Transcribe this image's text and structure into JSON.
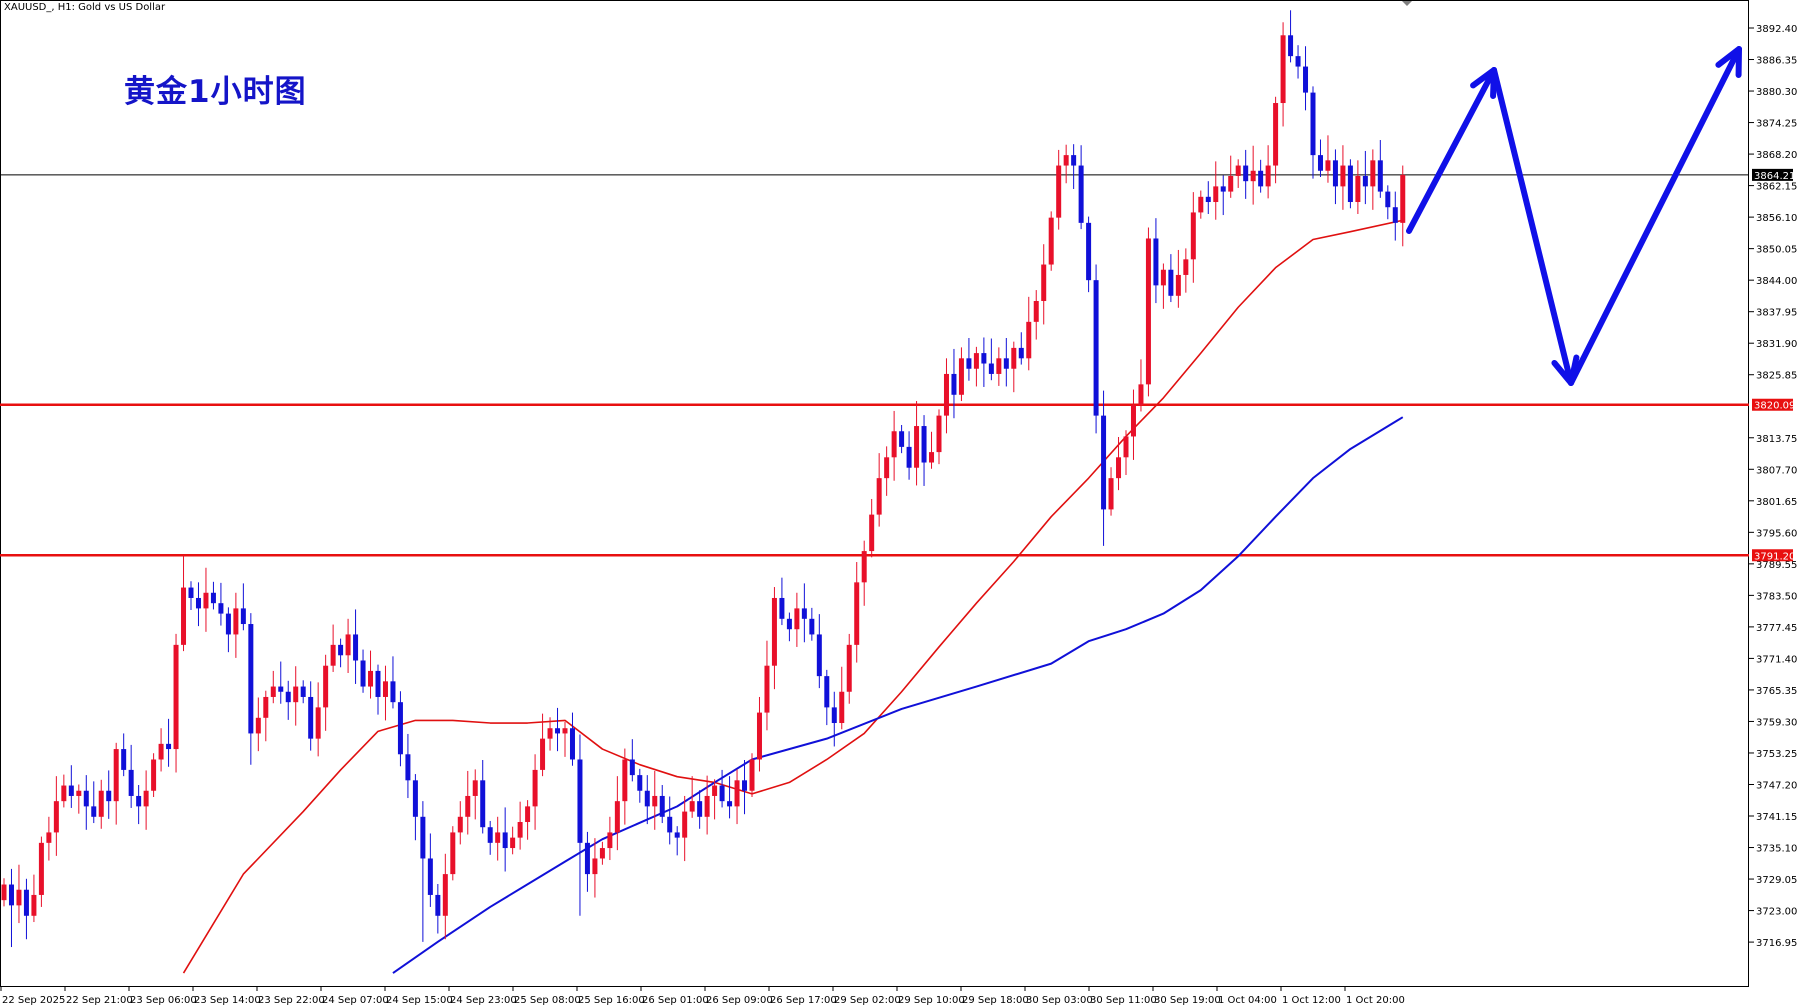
{
  "header": {
    "symbol_info": "XAUUSD_, H1:  Gold vs US Dollar",
    "annotation_title": "黄金1小时图"
  },
  "chart_data": {
    "type": "candlestick",
    "symbol": "XAUUSD_",
    "timeframe": "H1",
    "ylim": [
      3708.5,
      3898.0
    ],
    "grid": false,
    "colors": {
      "up": "#e8102a",
      "down": "#1010d8",
      "ma_fast": "#e01010",
      "ma_slow": "#1010d8",
      "level": "#e81010",
      "current_price_line": "#000000",
      "forecast_arrow": "#1010e8"
    },
    "first_open": 3725,
    "closes": [
      3728,
      3724,
      3727,
      3722,
      3726,
      3736,
      3738,
      3744,
      3747,
      3745,
      3746,
      3743,
      3741,
      3746,
      3744,
      3754,
      3750,
      3745,
      3743,
      3746,
      3752,
      3755,
      3754,
      3774,
      3785,
      3783,
      3781,
      3784,
      3782,
      3780,
      3776,
      3781,
      3778,
      3757,
      3760,
      3764,
      3766,
      3765,
      3763,
      3766,
      3764,
      3756,
      3762,
      3770,
      3774,
      3772,
      3776,
      3771,
      3766,
      3769,
      3764,
      3767,
      3763,
      3753,
      3748,
      3741,
      3733,
      3726,
      3722,
      3730,
      3738,
      3741,
      3745,
      3748,
      3739,
      3736,
      3738,
      3735,
      3737,
      3740,
      3743,
      3750,
      3756,
      3758,
      3757,
      3758,
      3752,
      3736,
      3730,
      3733,
      3735,
      3738,
      3744,
      3752,
      3749,
      3746,
      3743,
      3745,
      3741,
      3738,
      3737,
      3742,
      3744,
      3741,
      3745,
      3747,
      3744,
      3743,
      3748,
      3746,
      3752,
      3761,
      3770,
      3783,
      3779,
      3777,
      3781,
      3779,
      3776,
      3768,
      3762,
      3759,
      3765,
      3774,
      3786,
      3792,
      3799,
      3806,
      3810,
      3815,
      3812,
      3808,
      3816,
      3809,
      3811,
      3818,
      3826,
      3822,
      3829,
      3827,
      3830,
      3828,
      3826,
      3829,
      3827,
      3831,
      3829,
      3836,
      3840,
      3847,
      3856,
      3866,
      3868,
      3866,
      3855,
      3844,
      3818,
      3800,
      3806,
      3810,
      3814,
      3820,
      3824,
      3852,
      3843,
      3846,
      3841,
      3845,
      3848,
      3857,
      3860,
      3859,
      3862,
      3861,
      3864,
      3866,
      3863,
      3865,
      3862,
      3866,
      3878,
      3891,
      3887,
      3885,
      3880,
      3868,
      3865,
      3867,
      3862,
      3866,
      3859,
      3864,
      3862,
      3867,
      3861,
      3858,
      3855,
      3864.21
    ],
    "extremes": {
      "1": {
        "l": 3716
      },
      "24": {
        "h": 3791.2
      },
      "33": {
        "l": 3751
      },
      "56": {
        "l": 3717
      },
      "77": {
        "l": 3722
      },
      "115": {
        "h": 3794
      },
      "142": {
        "h": 3870
      },
      "147": {
        "l": 3793
      },
      "171": {
        "h": 3893.5
      },
      "187": {
        "h": 3866
      }
    },
    "ma_fast": [
      [
        24,
        3711
      ],
      [
        32,
        3730
      ],
      [
        40,
        3742
      ],
      [
        45,
        3750
      ],
      [
        50,
        3757.4
      ],
      [
        55,
        3759.5
      ],
      [
        60,
        3759.5
      ],
      [
        65,
        3759
      ],
      [
        70,
        3759
      ],
      [
        75,
        3759.5
      ],
      [
        80,
        3754
      ],
      [
        85,
        3751
      ],
      [
        90,
        3748.7
      ],
      [
        95,
        3747.6
      ],
      [
        100,
        3745.4
      ],
      [
        105,
        3747.6
      ],
      [
        110,
        3752
      ],
      [
        115,
        3757
      ],
      [
        120,
        3765
      ],
      [
        125,
        3773.6
      ],
      [
        130,
        3782
      ],
      [
        135,
        3790
      ],
      [
        140,
        3798.6
      ],
      [
        145,
        3806
      ],
      [
        150,
        3814
      ],
      [
        155,
        3821.4
      ],
      [
        160,
        3830
      ],
      [
        165,
        3838.8
      ],
      [
        170,
        3846.4
      ],
      [
        175,
        3851.8
      ],
      [
        180,
        3853.3
      ],
      [
        187,
        3855.5
      ]
    ],
    "ma_slow": [
      [
        52,
        3711
      ],
      [
        58,
        3717
      ],
      [
        65,
        3723.7
      ],
      [
        75,
        3732.4
      ],
      [
        80,
        3736.7
      ],
      [
        90,
        3743
      ],
      [
        95,
        3747.6
      ],
      [
        100,
        3752
      ],
      [
        110,
        3756
      ],
      [
        120,
        3761.7
      ],
      [
        130,
        3766
      ],
      [
        140,
        3770.4
      ],
      [
        145,
        3774.7
      ],
      [
        150,
        3777
      ],
      [
        155,
        3780
      ],
      [
        160,
        3784.5
      ],
      [
        165,
        3791
      ],
      [
        170,
        3798.6
      ],
      [
        175,
        3806
      ],
      [
        180,
        3811.6
      ],
      [
        187,
        3817.7
      ]
    ],
    "current_price": "3864.21",
    "levels": [
      "3820.09",
      "3791.20"
    ],
    "y_tick_labels": [
      "3892.40",
      "3886.35",
      "3880.30",
      "3874.25",
      "3868.20",
      "3862.15",
      "3856.10",
      "3850.05",
      "3844.00",
      "3837.95",
      "3831.90",
      "3825.85",
      "3813.75",
      "3807.70",
      "3801.65",
      "3795.60",
      "3789.55",
      "3783.50",
      "3777.45",
      "3771.40",
      "3765.35",
      "3759.30",
      "3753.25",
      "3747.20",
      "3741.15",
      "3735.10",
      "3729.05",
      "3723.00",
      "3716.95"
    ],
    "x_tick_labels": [
      "22 Sep 2025",
      "22 Sep 21:00",
      "23 Sep 06:00",
      "23 Sep 14:00",
      "23 Sep 22:00",
      "24 Sep 07:00",
      "24 Sep 15:00",
      "24 Sep 23:00",
      "25 Sep 08:00",
      "25 Sep 16:00",
      "26 Sep 01:00",
      "26 Sep 09:00",
      "26 Sep 17:00",
      "29 Sep 02:00",
      "29 Sep 10:00",
      "29 Sep 18:00",
      "30 Sep 03:00",
      "30 Sep 11:00",
      "30 Sep 19:00",
      "1 Oct 04:00",
      "1 Oct 12:00",
      "1 Oct 20:00"
    ],
    "forecast_arrows": "up, down, up"
  }
}
